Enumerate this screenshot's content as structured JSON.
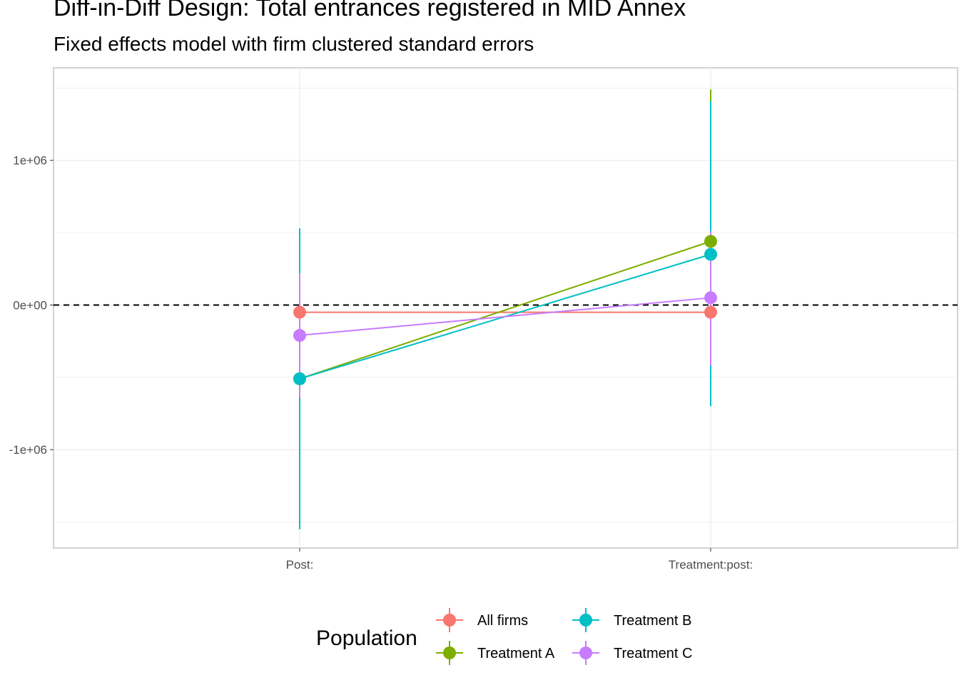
{
  "chart_data": {
    "type": "line",
    "title": "Diff-in-Diff Design: Total entrances registered in MID Annex",
    "subtitle": "Fixed effects model with firm clustered standard errors",
    "xlabel": "",
    "ylabel": "",
    "categories": [
      "Post:",
      "Treatment:post:"
    ],
    "ylim": [
      -1680000,
      1640000
    ],
    "y_ticks": [
      -1000000,
      0,
      1000000
    ],
    "y_tick_labels": [
      "-1e+06",
      "0e+00",
      "1e+06"
    ],
    "reference_line": 0,
    "grid": true,
    "legend_position": "bottom",
    "legend_title": "Population",
    "series": [
      {
        "name": "All firms",
        "color": "#F8766D",
        "values": [
          -50000,
          -50000
        ],
        "ci_low": [
          -260000,
          -260000
        ],
        "ci_high": [
          160000,
          160000
        ]
      },
      {
        "name": "Treatment A",
        "color": "#7CAE00",
        "values": [
          -510000,
          440000
        ],
        "ci_low": [
          -1540000,
          -600000
        ],
        "ci_high": [
          520000,
          1490000
        ]
      },
      {
        "name": "Treatment B",
        "color": "#00BFC4",
        "values": [
          -510000,
          350000
        ],
        "ci_low": [
          -1550000,
          -700000
        ],
        "ci_high": [
          530000,
          1410000
        ]
      },
      {
        "name": "Treatment C",
        "color": "#C77CFF",
        "values": [
          -210000,
          50000
        ],
        "ci_low": [
          -640000,
          -420000
        ],
        "ci_high": [
          220000,
          510000
        ]
      }
    ]
  }
}
